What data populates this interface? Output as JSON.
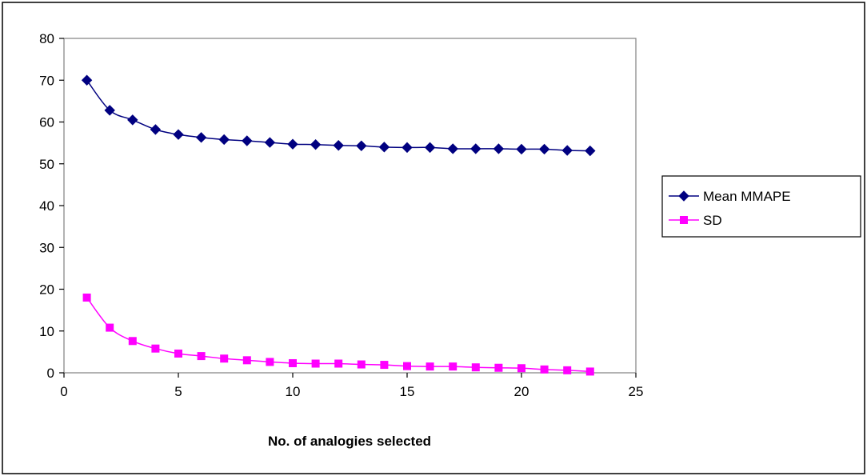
{
  "chart_data": {
    "type": "line",
    "title": "",
    "xlabel": "No. of analogies selected",
    "ylabel": "",
    "xlim": [
      0,
      25
    ],
    "ylim": [
      0,
      80
    ],
    "xticks": [
      0,
      5,
      10,
      15,
      20,
      25
    ],
    "yticks": [
      0,
      10,
      20,
      30,
      40,
      50,
      60,
      70,
      80
    ],
    "grid": false,
    "legend_position": "right",
    "x": [
      1,
      2,
      3,
      4,
      5,
      6,
      7,
      8,
      9,
      10,
      11,
      12,
      13,
      14,
      15,
      16,
      17,
      18,
      19,
      20,
      21,
      22,
      23
    ],
    "series": [
      {
        "name": "Mean MMAPE",
        "color": "#000080",
        "marker": "diamond",
        "values": [
          70.0,
          62.8,
          60.5,
          58.2,
          57.0,
          56.3,
          55.8,
          55.5,
          55.1,
          54.7,
          54.6,
          54.4,
          54.3,
          54.0,
          53.9,
          53.9,
          53.6,
          53.6,
          53.6,
          53.5,
          53.5,
          53.2,
          53.1
        ]
      },
      {
        "name": "SD",
        "color": "#ff00ff",
        "marker": "square",
        "values": [
          18.0,
          10.8,
          7.6,
          5.8,
          4.6,
          4.0,
          3.4,
          3.0,
          2.6,
          2.3,
          2.2,
          2.2,
          2.0,
          1.9,
          1.6,
          1.5,
          1.5,
          1.3,
          1.2,
          1.1,
          0.8,
          0.6,
          0.3
        ]
      }
    ]
  }
}
